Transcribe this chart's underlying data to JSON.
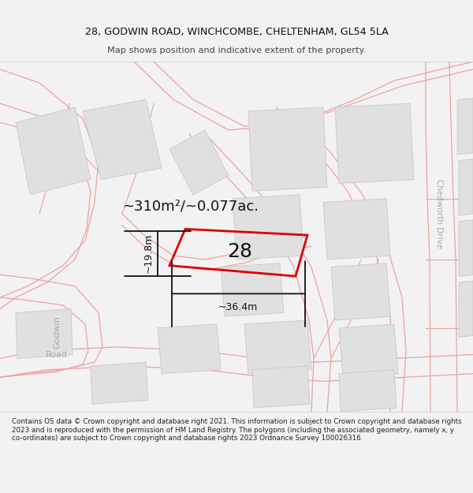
{
  "title_line1": "28, GODWIN ROAD, WINCHCOMBE, CHELTENHAM, GL54 5LA",
  "title_line2": "Map shows position and indicative extent of the property.",
  "footer_text": "Contains OS data © Crown copyright and database right 2021. This information is subject to Crown copyright and database rights 2023 and is reproduced with the permission of HM Land Registry. The polygons (including the associated geometry, namely x, y co-ordinates) are subject to Crown copyright and database rights 2023 Ordnance Survey 100026316.",
  "area_label": "~310m²/~0.077ac.",
  "house_number": "28",
  "dim_width": "~36.4m",
  "dim_height": "~19.8m",
  "road_label_godwin1": "Godwin",
  "road_label_godwin2": "Road",
  "road_label_chedworth": "Chedworth Drive",
  "bg_color": "#f2f2f2",
  "map_bg": "#ffffff",
  "road_color": "#f0a0a0",
  "building_fill": "#e0e0e0",
  "building_edge": "#c8c8c8",
  "plot_color": "#dd0000",
  "dim_color": "#111111"
}
